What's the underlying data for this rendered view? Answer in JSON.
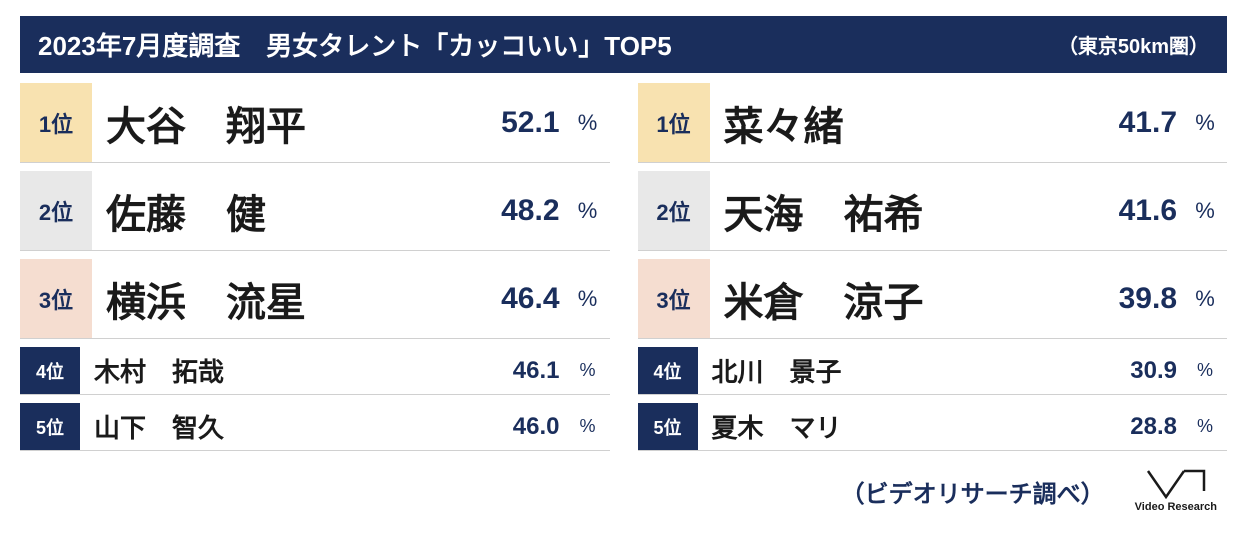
{
  "header": {
    "title": "2023年7月度調査　男女タレント「カッコいい」TOP5",
    "subtitle": "（東京50km圏）"
  },
  "colors": {
    "header_bg": "#1a2e5c",
    "rank1_bg": "#f8e2b0",
    "rank2_bg": "#e8e8e8",
    "rank3_bg": "#f5ddd0",
    "rank45_bg": "#1a2e5c",
    "text_dark": "#1a1a1a",
    "text_navy": "#1a2e5c",
    "border": "#d0d0d0"
  },
  "percent_label": "%",
  "left": [
    {
      "rank": "1位",
      "name": "大谷　翔平",
      "value": "52.1",
      "rank_bg": "#f8e2b0",
      "size": "large"
    },
    {
      "rank": "2位",
      "name": "佐藤　健",
      "value": "48.2",
      "rank_bg": "#e8e8e8",
      "size": "large"
    },
    {
      "rank": "3位",
      "name": "横浜　流星",
      "value": "46.4",
      "rank_bg": "#f5ddd0",
      "size": "large"
    },
    {
      "rank": "4位",
      "name": "木村　拓哉",
      "value": "46.1",
      "rank_bg": "#1a2e5c",
      "size": "small"
    },
    {
      "rank": "5位",
      "name": "山下　智久",
      "value": "46.0",
      "rank_bg": "#1a2e5c",
      "size": "small"
    }
  ],
  "right": [
    {
      "rank": "1位",
      "name": "菜々緒",
      "value": "41.7",
      "rank_bg": "#f8e2b0",
      "size": "large"
    },
    {
      "rank": "2位",
      "name": "天海　祐希",
      "value": "41.6",
      "rank_bg": "#e8e8e8",
      "size": "large"
    },
    {
      "rank": "3位",
      "name": "米倉　涼子",
      "value": "39.8",
      "rank_bg": "#f5ddd0",
      "size": "large"
    },
    {
      "rank": "4位",
      "name": "北川　景子",
      "value": "30.9",
      "rank_bg": "#1a2e5c",
      "size": "small"
    },
    {
      "rank": "5位",
      "name": "夏木　マリ",
      "value": "28.8",
      "rank_bg": "#1a2e5c",
      "size": "small"
    }
  ],
  "footer": {
    "credit": "（ビデオリサーチ調べ）",
    "logo_text": "Video Research"
  }
}
